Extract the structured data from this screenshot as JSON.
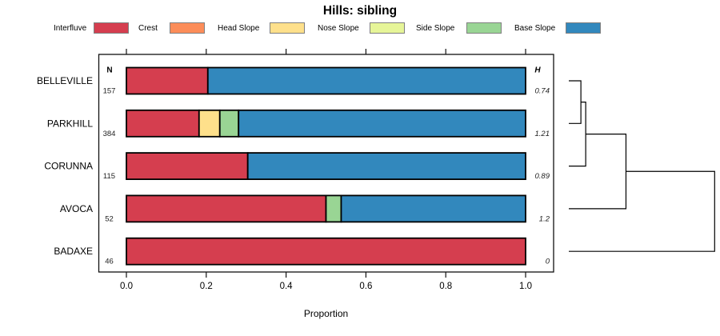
{
  "title": "Hills: sibling",
  "legend": {
    "items": [
      {
        "label": "Interfluve",
        "color": "#D53E4F"
      },
      {
        "label": "Crest",
        "color": "#FC8D59"
      },
      {
        "label": "Head Slope",
        "color": "#FEE08B"
      },
      {
        "label": "Nose Slope",
        "color": "#E6F598"
      },
      {
        "label": "Side Slope",
        "color": "#99D594"
      },
      {
        "label": "Base Slope",
        "color": "#3288BD"
      }
    ]
  },
  "chart_data": {
    "type": "bar",
    "variant": "horizontal_stacked_proportion",
    "title": "Hills: sibling",
    "xlabel": "Proportion",
    "xlim": [
      0,
      1
    ],
    "x_ticks": [
      "0.0",
      "0.2",
      "0.4",
      "0.6",
      "0.8",
      "1.0"
    ],
    "x_tick_values": [
      0.0,
      0.2,
      0.4,
      0.6,
      0.8,
      1.0
    ],
    "col_headers": {
      "n": "N",
      "h": "H"
    },
    "classes": [
      "Interfluve",
      "Crest",
      "Head Slope",
      "Nose Slope",
      "Side Slope",
      "Base Slope"
    ],
    "colors": [
      "#D53E4F",
      "#FC8D59",
      "#FEE08B",
      "#E6F598",
      "#99D594",
      "#3288BD"
    ],
    "rows": [
      {
        "name": "BELLEVILLE",
        "n": "157",
        "h": "0.74",
        "values": [
          0.204,
          0,
          0,
          0,
          0,
          0.796
        ]
      },
      {
        "name": "PARKHILL",
        "n": "384",
        "h": "1.21",
        "values": [
          0.182,
          0,
          0.052,
          0,
          0.047,
          0.719
        ]
      },
      {
        "name": "CORUNNA",
        "n": "115",
        "h": "0.89",
        "values": [
          0.304,
          0,
          0,
          0,
          0,
          0.696
        ]
      },
      {
        "name": "AVOCA",
        "n": "52",
        "h": "1.2",
        "values": [
          0.5,
          0,
          0,
          0,
          0.038,
          0.462
        ]
      },
      {
        "name": "BADAXE",
        "n": "46",
        "h": "0",
        "values": [
          1.0,
          0,
          0,
          0,
          0,
          0
        ]
      }
    ],
    "dendrogram": {
      "leaf_order": [
        "BELLEVILLE",
        "PARKHILL",
        "CORUNNA",
        "AVOCA",
        "BADAXE"
      ],
      "merges": [
        {
          "children": [
            "L0",
            "L1"
          ],
          "height": 0.083
        },
        {
          "children": [
            "M0",
            "L2"
          ],
          "height": 0.116
        },
        {
          "children": [
            "M1",
            "L3"
          ],
          "height": 0.392
        },
        {
          "children": [
            "M2",
            "L4"
          ],
          "height": 1.0
        }
      ]
    }
  }
}
